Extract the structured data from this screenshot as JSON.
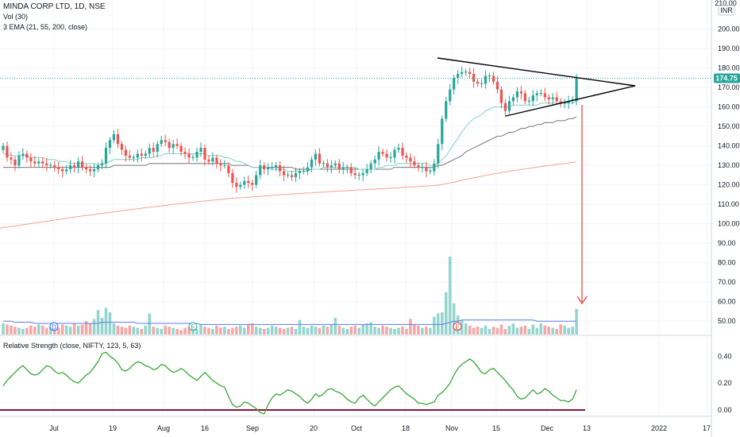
{
  "legend": {
    "title": "MINDA CORP LTD, 1D, NSE",
    "volume": "Vol (30)",
    "ema": "3 EMA (21, 55, 200, close)",
    "rs": "Relative Strength (close, NIFTY, 123, 5, 63)"
  },
  "price_axis": {
    "currency": "INR",
    "top_partial": "210.00",
    "last_price": "174.75",
    "ticks": [
      "200.00",
      "190.00",
      "180.00",
      "170.00",
      "160.00",
      "150.00",
      "140.00",
      "130.00",
      "120.00",
      "110.00",
      "100.00",
      "90.00",
      "80.00",
      "70.00",
      "60.00",
      "50.00"
    ]
  },
  "rs_axis": {
    "ticks": [
      "0.40",
      "0.20",
      "0.00"
    ]
  },
  "time_axis": {
    "ticks": [
      "Jul",
      "19",
      "Aug",
      "16",
      "Sep",
      "20",
      "Oct",
      "18",
      "Nov",
      "15",
      "Dec",
      "13",
      "2022",
      "17"
    ]
  },
  "event_markers": [
    {
      "letter": "D",
      "near": "Jul"
    },
    {
      "letter": "E",
      "near": "Aug"
    },
    {
      "letter": "E",
      "near": "Nov"
    }
  ],
  "colors": {
    "up": "#26a69a",
    "down": "#ef5350",
    "ema21": "#7fd3c2",
    "ema55": "#888888",
    "ema200": "#f3a29a",
    "volume_ma": "#5b7fe0",
    "rs_line": "#3aa838",
    "rs_zero": "#8b1538",
    "annotation": "#e53935",
    "trendline": "#000000",
    "last_price_bg": "#26a69a"
  },
  "chart_data": {
    "type": "candlestick",
    "price_range": [
      45,
      212
    ],
    "rs_range": [
      -0.03,
      0.45
    ],
    "closes": [
      140,
      134,
      133,
      130,
      135,
      136,
      134,
      132,
      131,
      132,
      131,
      130,
      130,
      129,
      128,
      127,
      128,
      130,
      129,
      132,
      129,
      128,
      127,
      128,
      130,
      131,
      139,
      143,
      146,
      141,
      138,
      135,
      134,
      134,
      136,
      135,
      136,
      139,
      137,
      141,
      143,
      142,
      139,
      141,
      140,
      137,
      136,
      134,
      134,
      137,
      139,
      133,
      132,
      134,
      131,
      130,
      130,
      126,
      121,
      119,
      120,
      122,
      121,
      120,
      125,
      130,
      128,
      129,
      129,
      130,
      127,
      125,
      125,
      124,
      126,
      127,
      127,
      129,
      133,
      136,
      131,
      131,
      129,
      130,
      131,
      128,
      129,
      129,
      126,
      125,
      125,
      126,
      128,
      131,
      133,
      137,
      136,
      134,
      134,
      138,
      139,
      135,
      134,
      132,
      130,
      129,
      129,
      127,
      127,
      131,
      141,
      154,
      163,
      169,
      175,
      177,
      178,
      178,
      177,
      173,
      172,
      172,
      176,
      176,
      173,
      169,
      162,
      158,
      163,
      165,
      168,
      167,
      163,
      163,
      166,
      167,
      167,
      165,
      164,
      165,
      163,
      162,
      162,
      163,
      164,
      174.75
    ],
    "opens": [
      138,
      140,
      134,
      133,
      130,
      135,
      136,
      134,
      132,
      131,
      132,
      131,
      130,
      130,
      129,
      128,
      127,
      128,
      130,
      129,
      132,
      129,
      128,
      127,
      128,
      130,
      131,
      139,
      143,
      146,
      141,
      138,
      135,
      134,
      134,
      136,
      135,
      136,
      139,
      137,
      141,
      143,
      142,
      139,
      141,
      140,
      137,
      136,
      134,
      134,
      137,
      139,
      133,
      132,
      134,
      131,
      130,
      130,
      126,
      121,
      119,
      120,
      122,
      121,
      120,
      125,
      130,
      128,
      129,
      129,
      130,
      127,
      125,
      125,
      124,
      126,
      127,
      127,
      129,
      133,
      136,
      131,
      131,
      129,
      130,
      131,
      128,
      129,
      129,
      126,
      125,
      125,
      126,
      128,
      131,
      133,
      137,
      136,
      134,
      134,
      138,
      139,
      135,
      134,
      132,
      130,
      129,
      129,
      127,
      127,
      131,
      141,
      154,
      163,
      169,
      175,
      177,
      178,
      178,
      177,
      173,
      172,
      172,
      176,
      176,
      173,
      169,
      162,
      158,
      163,
      165,
      168,
      167,
      163,
      163,
      166,
      167,
      167,
      165,
      164,
      165,
      163,
      162,
      162,
      163,
      163
    ],
    "ema_21": [
      136,
      136,
      135,
      135,
      135,
      135,
      135,
      134,
      134,
      134,
      134,
      133,
      133,
      133,
      132,
      132,
      132,
      131,
      131,
      131,
      131,
      131,
      131,
      131,
      130,
      131,
      131,
      132,
      133,
      133,
      133,
      133,
      133,
      133,
      133,
      134,
      134,
      134,
      134,
      135,
      135,
      136,
      136,
      136,
      136,
      136,
      136,
      136,
      136,
      136,
      136,
      136,
      135,
      135,
      135,
      135,
      134,
      134,
      133,
      132,
      132,
      131,
      130,
      129,
      129,
      129,
      129,
      129,
      128,
      128,
      128,
      128,
      127,
      127,
      127,
      127,
      127,
      127,
      128,
      128,
      128,
      129,
      129,
      129,
      129,
      129,
      129,
      129,
      129,
      129,
      128,
      128,
      128,
      128,
      128,
      129,
      129,
      130,
      130,
      130,
      131,
      131,
      131,
      131,
      131,
      131,
      131,
      131,
      130,
      130,
      131,
      133,
      135,
      138,
      141,
      144,
      147,
      150,
      152,
      154,
      155,
      156,
      158,
      159,
      160,
      160,
      160,
      160,
      160,
      161,
      161,
      161,
      161,
      161,
      161,
      161,
      162,
      162,
      162,
      162,
      162,
      162,
      162,
      162,
      162,
      163
    ],
    "ema_55": [
      129,
      129,
      129,
      129,
      129,
      129,
      129,
      129,
      129,
      129,
      129,
      129,
      129,
      129,
      129,
      129,
      129,
      129,
      129,
      129,
      129,
      129,
      129,
      129,
      129,
      129,
      129,
      129,
      130,
      130,
      130,
      130,
      130,
      130,
      130,
      130,
      130,
      131,
      131,
      131,
      131,
      131,
      131,
      131,
      131,
      131,
      131,
      131,
      131,
      131,
      131,
      131,
      131,
      131,
      131,
      131,
      131,
      131,
      130,
      130,
      130,
      130,
      130,
      129,
      129,
      129,
      129,
      129,
      129,
      129,
      129,
      129,
      129,
      129,
      128,
      128,
      128,
      128,
      128,
      128,
      128,
      128,
      128,
      128,
      128,
      128,
      128,
      128,
      128,
      128,
      128,
      128,
      128,
      128,
      128,
      128,
      128,
      128,
      128,
      129,
      129,
      129,
      129,
      129,
      129,
      129,
      129,
      129,
      129,
      129,
      130,
      130,
      131,
      132,
      133,
      134,
      135,
      137,
      138,
      139,
      140,
      141,
      142,
      143,
      144,
      145,
      145,
      146,
      147,
      147,
      148,
      149,
      149,
      150,
      150,
      151,
      151,
      152,
      152,
      152,
      153,
      153,
      153,
      154,
      154,
      155
    ],
    "ema_200": [
      98,
      98.3,
      98.6,
      98.9,
      99.2,
      99.5,
      99.8,
      100.1,
      100.4,
      100.7,
      101,
      101.3,
      101.6,
      101.9,
      102.2,
      102.5,
      102.8,
      103.1,
      103.4,
      103.7,
      104,
      104.3,
      104.5,
      104.8,
      105.1,
      105.3,
      105.6,
      105.9,
      106.1,
      106.4,
      106.7,
      106.9,
      107.2,
      107.5,
      107.7,
      108,
      108.2,
      108.5,
      108.7,
      109,
      109.2,
      109.5,
      109.7,
      110,
      110.2,
      110.4,
      110.6,
      110.9,
      111.1,
      111.3,
      111.5,
      111.7,
      111.9,
      112.1,
      112.3,
      112.5,
      112.7,
      112.9,
      113.1,
      113.2,
      113.4,
      113.5,
      113.7,
      113.8,
      114,
      114.1,
      114.3,
      114.4,
      114.6,
      114.7,
      114.9,
      115,
      115.1,
      115.3,
      115.4,
      115.5,
      115.7,
      115.8,
      115.9,
      116.1,
      116.2,
      116.3,
      116.4,
      116.6,
      116.7,
      116.8,
      116.9,
      117,
      117.2,
      117.3,
      117.4,
      117.5,
      117.6,
      117.7,
      117.8,
      117.9,
      118,
      118.1,
      118.3,
      118.4,
      118.5,
      118.7,
      118.8,
      118.9,
      119,
      119.2,
      119.3,
      119.4,
      119.5,
      119.6,
      119.9,
      120.2,
      120.6,
      121,
      121.4,
      121.9,
      122.3,
      122.8,
      123.2,
      123.6,
      124,
      124.4,
      124.8,
      125.2,
      125.6,
      126,
      126.3,
      126.6,
      127,
      127.3,
      127.6,
      127.9,
      128.2,
      128.5,
      128.8,
      129.1,
      129.4,
      129.7,
      129.9,
      130.2,
      130.5,
      130.7,
      131,
      131.2,
      131.5,
      131.8
    ],
    "volume": [
      10,
      9,
      8,
      7,
      6,
      5,
      6,
      8,
      7,
      9,
      8,
      6,
      7,
      5,
      6,
      9,
      8,
      7,
      10,
      8,
      9,
      12,
      10,
      14,
      22,
      15,
      24,
      20,
      10,
      8,
      7,
      6,
      8,
      7,
      6,
      5,
      8,
      19,
      7,
      6,
      5,
      8,
      7,
      6,
      5,
      4,
      6,
      7,
      6,
      5,
      9,
      7,
      6,
      5,
      8,
      6,
      7,
      5,
      6,
      7,
      8,
      6,
      9,
      10,
      7,
      6,
      5,
      6,
      8,
      7,
      6,
      5,
      6,
      7,
      5,
      13,
      7,
      6,
      8,
      7,
      6,
      8,
      7,
      9,
      15,
      8,
      6,
      5,
      7,
      8,
      6,
      9,
      10,
      11,
      7,
      6,
      8,
      7,
      6,
      5,
      6,
      7,
      5,
      14,
      9,
      8,
      6,
      7,
      6,
      16,
      19,
      20,
      38,
      70,
      28,
      17,
      13,
      10,
      8,
      6,
      7,
      6,
      8,
      5,
      7,
      6,
      9,
      5,
      8,
      10,
      6,
      7,
      8,
      5,
      9,
      6,
      10,
      8,
      7,
      6,
      5,
      9,
      8,
      6,
      7,
      23
    ],
    "volume_ma": [
      12,
      12,
      12,
      11,
      11,
      11,
      11,
      11,
      10,
      10,
      10,
      10,
      10,
      10,
      10,
      10,
      10,
      10,
      10,
      10,
      10,
      10,
      10,
      10,
      10,
      11,
      11,
      11,
      11,
      11,
      11,
      11,
      11,
      11,
      10,
      10,
      10,
      10,
      10,
      10,
      10,
      10,
      10,
      10,
      10,
      10,
      10,
      10,
      10,
      10,
      9,
      9,
      9,
      9,
      9,
      9,
      9,
      9,
      9,
      9,
      9,
      9,
      9,
      9,
      9,
      9,
      9,
      9,
      9,
      9,
      9,
      9,
      9,
      9,
      9,
      9,
      9,
      9,
      9,
      9,
      9,
      9,
      9,
      9,
      9,
      9,
      9,
      9,
      9,
      9,
      9,
      9,
      9,
      9,
      9,
      9,
      9,
      9,
      9,
      9,
      9,
      9,
      9,
      9,
      9,
      9,
      9,
      9,
      9,
      9,
      9,
      9,
      10,
      11,
      12,
      12,
      13,
      13,
      13,
      13,
      13,
      13,
      13,
      13,
      13,
      13,
      13,
      13,
      13,
      13,
      13,
      13,
      13,
      13,
      13,
      12,
      12,
      12,
      12,
      12,
      12,
      12,
      12,
      12,
      12,
      12
    ],
    "rs": [
      0.18,
      0.22,
      0.25,
      0.28,
      0.31,
      0.33,
      0.3,
      0.27,
      0.26,
      0.27,
      0.3,
      0.33,
      0.32,
      0.29,
      0.27,
      0.28,
      0.26,
      0.23,
      0.21,
      0.2,
      0.23,
      0.26,
      0.28,
      0.32,
      0.36,
      0.42,
      0.43,
      0.4,
      0.38,
      0.35,
      0.3,
      0.29,
      0.31,
      0.34,
      0.36,
      0.35,
      0.33,
      0.32,
      0.3,
      0.31,
      0.34,
      0.33,
      0.3,
      0.28,
      0.29,
      0.31,
      0.29,
      0.26,
      0.24,
      0.22,
      0.25,
      0.28,
      0.25,
      0.22,
      0.2,
      0.18,
      0.17,
      0.1,
      0.04,
      0.02,
      0.03,
      0.06,
      0.05,
      0.03,
      0.01,
      -0.02,
      -0.03,
      0.04,
      0.09,
      0.12,
      0.11,
      0.13,
      0.15,
      0.14,
      0.12,
      0.1,
      0.07,
      0.05,
      0.08,
      0.12,
      0.1,
      0.12,
      0.15,
      0.16,
      0.14,
      0.13,
      0.11,
      0.08,
      0.06,
      0.05,
      0.09,
      0.11,
      0.08,
      0.05,
      0.03,
      0.06,
      0.09,
      0.12,
      0.15,
      0.17,
      0.18,
      0.15,
      0.12,
      0.1,
      0.08,
      0.05,
      0.05,
      0.04,
      0.05,
      0.06,
      0.11,
      0.13,
      0.16,
      0.2,
      0.26,
      0.31,
      0.34,
      0.36,
      0.38,
      0.36,
      0.32,
      0.28,
      0.27,
      0.3,
      0.31,
      0.28,
      0.25,
      0.22,
      0.18,
      0.15,
      0.1,
      0.08,
      0.09,
      0.12,
      0.15,
      0.12,
      0.13,
      0.16,
      0.14,
      0.11,
      0.09,
      0.07,
      0.07,
      0.06,
      0.08,
      0.15
    ]
  }
}
